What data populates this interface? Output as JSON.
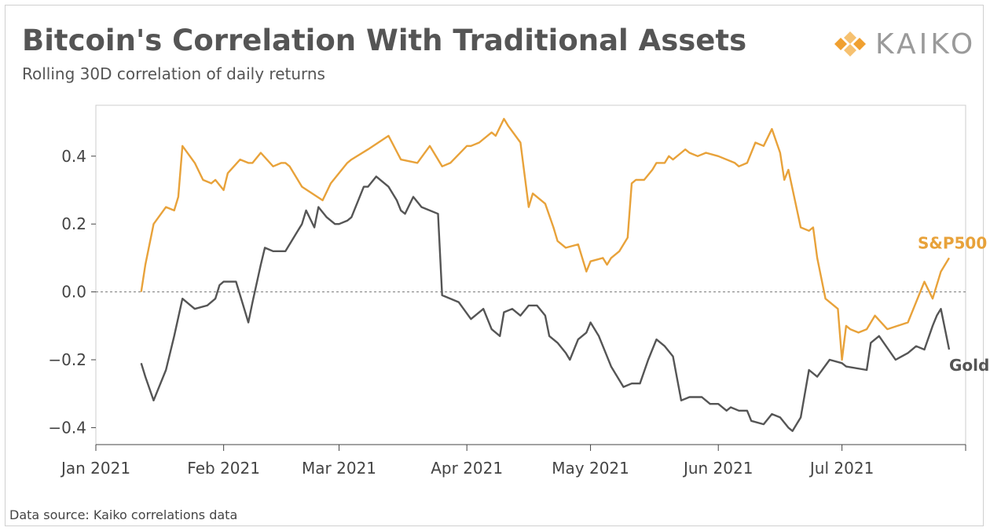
{
  "header": {
    "title": "Bitcoin's Correlation With Traditional Assets",
    "subtitle": "Rolling 30D correlation of daily returns",
    "brand": "KAIKO"
  },
  "footer": {
    "source": "Data source: Kaiko correlations data"
  },
  "colors": {
    "sp500": "#E8A23A",
    "gold": "#555555",
    "brand": "#F0A030"
  },
  "chart_data": {
    "type": "line",
    "title": "Bitcoin's Correlation With Traditional Assets",
    "subtitle": "Rolling 30D correlation of daily returns",
    "xlabel": "",
    "ylabel": "",
    "xlim": [
      "2021-01-01",
      "2021-07-31"
    ],
    "ylim": [
      -0.45,
      0.55
    ],
    "y_ticks": [
      0.4,
      0.2,
      0.0,
      -0.2,
      -0.4
    ],
    "y_tick_labels": [
      "0.4",
      "0.2",
      "0.0",
      "−0.2",
      "−0.4"
    ],
    "x_ticks": [
      "2021-01-01",
      "2021-02-01",
      "2021-03-01",
      "2021-04-01",
      "2021-05-01",
      "2021-06-01",
      "2021-07-01"
    ],
    "x_tick_labels": [
      "Jan 2021",
      "Feb 2021",
      "Mar 2021",
      "Apr 2021",
      "May 2021",
      "Jun 2021",
      "Jul 2021"
    ],
    "zero_line": true,
    "grid": false,
    "legend": "inline labels at line ends",
    "series": [
      {
        "name": "S&P500",
        "x": [
          "2021-01-12",
          "2021-01-13",
          "2021-01-15",
          "2021-01-18",
          "2021-01-20",
          "2021-01-21",
          "2021-01-22",
          "2021-01-25",
          "2021-01-27",
          "2021-01-29",
          "2021-01-30",
          "2021-02-01",
          "2021-02-02",
          "2021-02-05",
          "2021-02-07",
          "2021-02-08",
          "2021-02-10",
          "2021-02-13",
          "2021-02-15",
          "2021-02-16",
          "2021-02-17",
          "2021-02-20",
          "2021-02-25",
          "2021-02-27",
          "2021-03-01",
          "2021-03-03",
          "2021-03-04",
          "2021-03-08",
          "2021-03-13",
          "2021-03-16",
          "2021-03-20",
          "2021-03-23",
          "2021-03-26",
          "2021-03-28",
          "2021-04-01",
          "2021-04-02",
          "2021-04-04",
          "2021-04-07",
          "2021-04-08",
          "2021-04-10",
          "2021-04-11",
          "2021-04-14",
          "2021-04-16",
          "2021-04-17",
          "2021-04-20",
          "2021-04-22",
          "2021-04-23",
          "2021-04-25",
          "2021-04-28",
          "2021-04-30",
          "2021-05-01",
          "2021-05-04",
          "2021-05-05",
          "2021-05-06",
          "2021-05-08",
          "2021-05-10",
          "2021-05-11",
          "2021-05-12",
          "2021-05-14",
          "2021-05-16",
          "2021-05-17",
          "2021-05-19",
          "2021-05-20",
          "2021-05-21",
          "2021-05-23",
          "2021-05-24",
          "2021-05-25",
          "2021-05-27",
          "2021-05-29",
          "2021-06-01",
          "2021-06-05",
          "2021-06-06",
          "2021-06-08",
          "2021-06-10",
          "2021-06-12",
          "2021-06-14",
          "2021-06-16",
          "2021-06-17",
          "2021-06-18",
          "2021-06-21",
          "2021-06-23",
          "2021-06-24",
          "2021-06-25",
          "2021-06-27",
          "2021-06-28",
          "2021-06-30",
          "2021-07-01",
          "2021-07-02",
          "2021-07-03",
          "2021-07-05",
          "2021-07-07",
          "2021-07-09",
          "2021-07-12",
          "2021-07-17",
          "2021-07-19",
          "2021-07-21",
          "2021-07-23",
          "2021-07-25",
          "2021-07-27"
        ],
        "values": [
          0.0,
          0.08,
          0.2,
          0.25,
          0.24,
          0.28,
          0.43,
          0.38,
          0.33,
          0.32,
          0.33,
          0.3,
          0.35,
          0.39,
          0.38,
          0.38,
          0.41,
          0.37,
          0.38,
          0.38,
          0.37,
          0.31,
          0.27,
          0.32,
          0.35,
          0.38,
          0.39,
          0.42,
          0.46,
          0.39,
          0.38,
          0.43,
          0.37,
          0.38,
          0.43,
          0.43,
          0.44,
          0.47,
          0.46,
          0.51,
          0.49,
          0.44,
          0.25,
          0.29,
          0.26,
          0.19,
          0.15,
          0.13,
          0.14,
          0.06,
          0.09,
          0.1,
          0.08,
          0.1,
          0.12,
          0.16,
          0.32,
          0.33,
          0.33,
          0.36,
          0.38,
          0.38,
          0.4,
          0.39,
          0.41,
          0.42,
          0.41,
          0.4,
          0.41,
          0.4,
          0.38,
          0.37,
          0.38,
          0.44,
          0.43,
          0.48,
          0.41,
          0.33,
          0.36,
          0.19,
          0.18,
          0.19,
          0.1,
          -0.02,
          -0.03,
          -0.05,
          -0.2,
          -0.1,
          -0.11,
          -0.12,
          -0.11,
          -0.07,
          -0.11,
          -0.09,
          -0.03,
          0.03,
          -0.02,
          0.06,
          0.1
        ]
      },
      {
        "name": "Gold",
        "x": [
          "2021-01-12",
          "2021-01-13",
          "2021-01-15",
          "2021-01-16",
          "2021-01-18",
          "2021-01-20",
          "2021-01-22",
          "2021-01-24",
          "2021-01-25",
          "2021-01-28",
          "2021-01-30",
          "2021-01-31",
          "2021-02-01",
          "2021-02-04",
          "2021-02-07",
          "2021-02-08",
          "2021-02-10",
          "2021-02-11",
          "2021-02-13",
          "2021-02-16",
          "2021-02-20",
          "2021-02-21",
          "2021-02-23",
          "2021-02-24",
          "2021-02-26",
          "2021-02-28",
          "2021-03-01",
          "2021-03-03",
          "2021-03-04",
          "2021-03-07",
          "2021-03-08",
          "2021-03-10",
          "2021-03-13",
          "2021-03-15",
          "2021-03-16",
          "2021-03-17",
          "2021-03-19",
          "2021-03-21",
          "2021-03-25",
          "2021-03-26",
          "2021-03-30",
          "2021-04-02",
          "2021-04-05",
          "2021-04-07",
          "2021-04-09",
          "2021-04-10",
          "2021-04-12",
          "2021-04-14",
          "2021-04-16",
          "2021-04-18",
          "2021-04-20",
          "2021-04-21",
          "2021-04-23",
          "2021-04-25",
          "2021-04-26",
          "2021-04-28",
          "2021-04-30",
          "2021-05-01",
          "2021-05-03",
          "2021-05-05",
          "2021-05-06",
          "2021-05-09",
          "2021-05-11",
          "2021-05-13",
          "2021-05-15",
          "2021-05-17",
          "2021-05-19",
          "2021-05-21",
          "2021-05-23",
          "2021-05-25",
          "2021-05-28",
          "2021-05-30",
          "2021-06-01",
          "2021-06-03",
          "2021-06-04",
          "2021-06-06",
          "2021-06-08",
          "2021-06-09",
          "2021-06-12",
          "2021-06-14",
          "2021-06-16",
          "2021-06-18",
          "2021-06-19",
          "2021-06-21",
          "2021-06-23",
          "2021-06-25",
          "2021-06-28",
          "2021-07-01",
          "2021-07-02",
          "2021-07-07",
          "2021-07-08",
          "2021-07-09",
          "2021-07-10",
          "2021-07-14",
          "2021-07-17",
          "2021-07-19",
          "2021-07-21",
          "2021-07-23",
          "2021-07-24",
          "2021-07-25",
          "2021-07-27"
        ],
        "values": [
          -0.21,
          -0.25,
          -0.32,
          -0.29,
          -0.23,
          -0.13,
          -0.02,
          -0.04,
          -0.05,
          -0.04,
          -0.02,
          0.02,
          0.03,
          0.03,
          -0.09,
          -0.03,
          0.08,
          0.13,
          0.12,
          0.12,
          0.2,
          0.24,
          0.19,
          0.25,
          0.22,
          0.2,
          0.2,
          0.21,
          0.22,
          0.31,
          0.31,
          0.34,
          0.31,
          0.27,
          0.24,
          0.23,
          0.28,
          0.25,
          0.23,
          -0.01,
          -0.03,
          -0.08,
          -0.05,
          -0.11,
          -0.13,
          -0.06,
          -0.05,
          -0.07,
          -0.04,
          -0.04,
          -0.07,
          -0.13,
          -0.15,
          -0.18,
          -0.2,
          -0.14,
          -0.12,
          -0.09,
          -0.13,
          -0.19,
          -0.22,
          -0.28,
          -0.27,
          -0.27,
          -0.2,
          -0.14,
          -0.16,
          -0.19,
          -0.32,
          -0.31,
          -0.31,
          -0.33,
          -0.33,
          -0.35,
          -0.34,
          -0.35,
          -0.35,
          -0.38,
          -0.39,
          -0.36,
          -0.37,
          -0.4,
          -0.41,
          -0.37,
          -0.23,
          -0.25,
          -0.2,
          -0.21,
          -0.22,
          -0.23,
          -0.15,
          -0.14,
          -0.13,
          -0.2,
          -0.18,
          -0.16,
          -0.17,
          -0.1,
          -0.07,
          -0.05,
          -0.17
        ]
      }
    ]
  }
}
